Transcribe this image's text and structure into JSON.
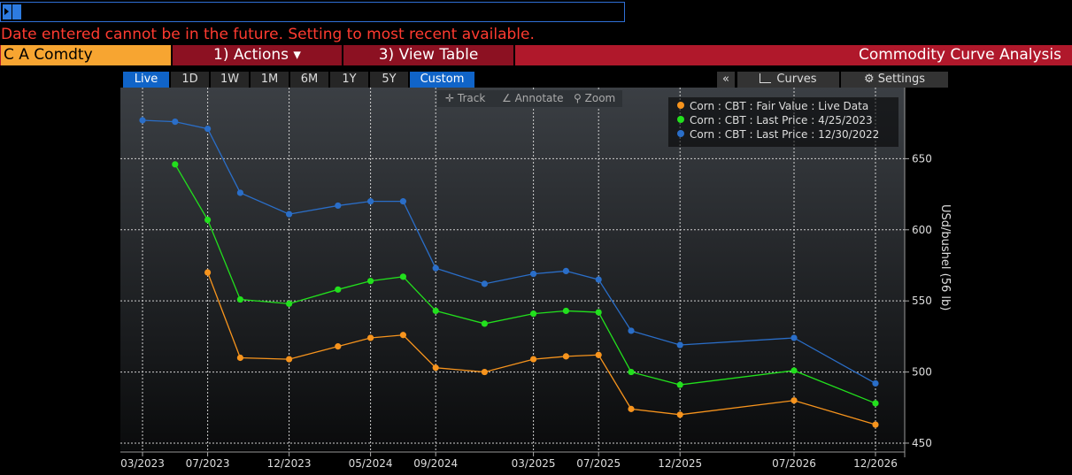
{
  "command_line": {
    "value": ""
  },
  "error_message": "Date entered cannot be in the future. Setting to most recent available.",
  "toolbar": {
    "ticker": "C A Comdty",
    "actions_label": "1) Actions ▾",
    "view_table_label": "3) View Table",
    "title": "Commodity Curve Analysis"
  },
  "ranges": [
    "Live",
    "1D",
    "1W",
    "1M",
    "6M",
    "1Y",
    "5Y",
    "Custom"
  ],
  "active_ranges": [
    "Live",
    "Custom"
  ],
  "right_controls": {
    "collapse": "«",
    "curves": "Curves",
    "settings": "Settings"
  },
  "chart_tools": {
    "track": "Track",
    "annotate": "Annotate",
    "zoom": "Zoom"
  },
  "chart_data": {
    "type": "line",
    "ylabel": "USd/bushel (56 lb)",
    "ylim": [
      445,
      700
    ],
    "yticks": [
      450,
      500,
      550,
      600,
      650
    ],
    "x_tick_labels": [
      "03/2023",
      "07/2023",
      "12/2023",
      "05/2024",
      "09/2024",
      "03/2025",
      "07/2025",
      "12/2025",
      "07/2026",
      "12/2026"
    ],
    "x_tick_dates": [
      "2023-03",
      "2023-07",
      "2023-12",
      "2024-05",
      "2024-09",
      "2025-03",
      "2025-07",
      "2025-12",
      "2026-07",
      "2026-12"
    ],
    "grid": true,
    "legend_position": "top-right",
    "series": [
      {
        "name": "Corn : CBT : Fair Value : Live Data",
        "color": "#f7941d",
        "x": [
          "2023-07",
          "2023-09",
          "2023-12",
          "2024-03",
          "2024-05",
          "2024-07",
          "2024-09",
          "2024-12",
          "2025-03",
          "2025-05",
          "2025-07",
          "2025-09",
          "2025-12",
          "2026-07",
          "2026-12"
        ],
        "y": [
          570,
          510,
          509,
          518,
          524,
          526,
          503,
          500,
          509,
          511,
          512,
          474,
          470,
          480,
          463
        ]
      },
      {
        "name": "Corn : CBT : Last Price : 4/25/2023",
        "color": "#22e01d",
        "x": [
          "2023-05",
          "2023-07",
          "2023-09",
          "2023-12",
          "2024-03",
          "2024-05",
          "2024-07",
          "2024-09",
          "2024-12",
          "2025-03",
          "2025-05",
          "2025-07",
          "2025-09",
          "2025-12",
          "2026-07",
          "2026-12"
        ],
        "y": [
          646,
          607,
          551,
          548,
          558,
          564,
          567,
          543,
          534,
          541,
          543,
          542,
          500,
          491,
          501,
          478
        ]
      },
      {
        "name": "Corn : CBT : Last Price : 12/30/2022",
        "color": "#2a6ec8",
        "x": [
          "2023-03",
          "2023-05",
          "2023-07",
          "2023-09",
          "2023-12",
          "2024-03",
          "2024-05",
          "2024-07",
          "2024-09",
          "2024-12",
          "2025-03",
          "2025-05",
          "2025-07",
          "2025-09",
          "2025-12",
          "2026-07",
          "2026-12"
        ],
        "y": [
          677,
          676,
          671,
          626,
          611,
          617,
          620,
          620,
          573,
          562,
          569,
          571,
          565,
          529,
          519,
          524,
          492
        ]
      }
    ]
  }
}
